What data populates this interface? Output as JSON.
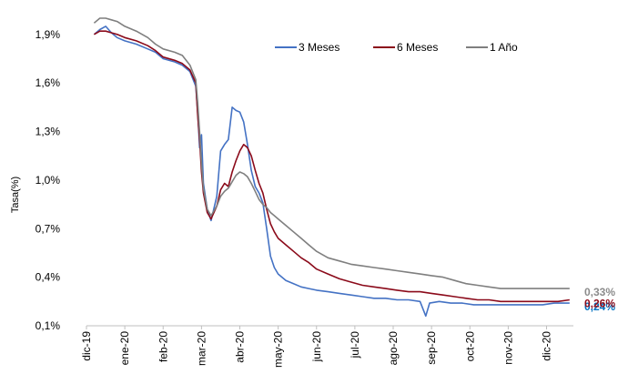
{
  "chart_data": {
    "type": "line",
    "title": "",
    "xlabel": "",
    "ylabel": "Tasa(%)",
    "ylim": [
      0.1,
      2.0
    ],
    "yticks": [
      "0,1%",
      "0,4%",
      "0,7%",
      "1,0%",
      "1,3%",
      "1,6%",
      "1,9%"
    ],
    "ytick_values": [
      0.1,
      0.4,
      0.7,
      1.0,
      1.3,
      1.6,
      1.9
    ],
    "xticks": [
      "dic-19",
      "ene-20",
      "feb-20",
      "mar-20",
      "abr-20",
      "may-20",
      "jun-20",
      "jul-20",
      "ago-20",
      "sep-20",
      "oct-20",
      "nov-20",
      "dic-20"
    ],
    "xlim": [
      0,
      12.7
    ],
    "legend_position": "top-right",
    "grid": false,
    "series": [
      {
        "name": "3 Meses",
        "color": "#4472C4",
        "end_label": "0,24%",
        "end_label_color": "#0070C0",
        "points": [
          [
            0.2,
            1.9
          ],
          [
            0.35,
            1.93
          ],
          [
            0.5,
            1.95
          ],
          [
            0.65,
            1.91
          ],
          [
            0.8,
            1.88
          ],
          [
            1.0,
            1.86
          ],
          [
            1.3,
            1.84
          ],
          [
            1.6,
            1.81
          ],
          [
            1.8,
            1.79
          ],
          [
            2.0,
            1.75
          ],
          [
            2.3,
            1.73
          ],
          [
            2.5,
            1.71
          ],
          [
            2.7,
            1.67
          ],
          [
            2.85,
            1.58
          ],
          [
            2.9,
            1.42
          ],
          [
            2.95,
            1.2
          ],
          [
            3.0,
            1.28
          ],
          [
            3.05,
            0.98
          ],
          [
            3.15,
            0.82
          ],
          [
            3.25,
            0.75
          ],
          [
            3.4,
            0.9
          ],
          [
            3.5,
            1.18
          ],
          [
            3.6,
            1.22
          ],
          [
            3.7,
            1.25
          ],
          [
            3.8,
            1.45
          ],
          [
            3.9,
            1.43
          ],
          [
            4.0,
            1.42
          ],
          [
            4.1,
            1.36
          ],
          [
            4.2,
            1.22
          ],
          [
            4.3,
            1.06
          ],
          [
            4.4,
            0.96
          ],
          [
            4.5,
            0.92
          ],
          [
            4.6,
            0.86
          ],
          [
            4.7,
            0.7
          ],
          [
            4.8,
            0.53
          ],
          [
            4.9,
            0.46
          ],
          [
            5.0,
            0.42
          ],
          [
            5.2,
            0.38
          ],
          [
            5.4,
            0.36
          ],
          [
            5.6,
            0.34
          ],
          [
            5.8,
            0.33
          ],
          [
            6.0,
            0.32
          ],
          [
            6.3,
            0.31
          ],
          [
            6.6,
            0.3
          ],
          [
            6.9,
            0.29
          ],
          [
            7.2,
            0.28
          ],
          [
            7.5,
            0.27
          ],
          [
            7.8,
            0.27
          ],
          [
            8.1,
            0.26
          ],
          [
            8.4,
            0.26
          ],
          [
            8.7,
            0.25
          ],
          [
            8.85,
            0.16
          ],
          [
            8.95,
            0.24
          ],
          [
            9.2,
            0.25
          ],
          [
            9.5,
            0.24
          ],
          [
            9.8,
            0.24
          ],
          [
            10.1,
            0.23
          ],
          [
            10.4,
            0.23
          ],
          [
            10.7,
            0.23
          ],
          [
            11.0,
            0.23
          ],
          [
            11.3,
            0.23
          ],
          [
            11.6,
            0.23
          ],
          [
            11.9,
            0.23
          ],
          [
            12.2,
            0.24
          ],
          [
            12.5,
            0.24
          ],
          [
            12.6,
            0.24
          ]
        ]
      },
      {
        "name": "6 Meses",
        "color": "#8B0A1A",
        "end_label": "0,26%",
        "end_label_color": "#8B0A1A",
        "points": [
          [
            0.2,
            1.9
          ],
          [
            0.35,
            1.92
          ],
          [
            0.5,
            1.92
          ],
          [
            0.65,
            1.91
          ],
          [
            0.8,
            1.9
          ],
          [
            1.0,
            1.88
          ],
          [
            1.3,
            1.86
          ],
          [
            1.6,
            1.83
          ],
          [
            1.8,
            1.8
          ],
          [
            2.0,
            1.76
          ],
          [
            2.3,
            1.74
          ],
          [
            2.5,
            1.72
          ],
          [
            2.7,
            1.68
          ],
          [
            2.85,
            1.6
          ],
          [
            2.9,
            1.4
          ],
          [
            2.95,
            1.25
          ],
          [
            3.0,
            1.05
          ],
          [
            3.05,
            0.92
          ],
          [
            3.15,
            0.8
          ],
          [
            3.25,
            0.76
          ],
          [
            3.4,
            0.84
          ],
          [
            3.5,
            0.94
          ],
          [
            3.6,
            0.98
          ],
          [
            3.7,
            0.96
          ],
          [
            3.8,
            1.05
          ],
          [
            3.9,
            1.12
          ],
          [
            4.0,
            1.18
          ],
          [
            4.1,
            1.22
          ],
          [
            4.2,
            1.2
          ],
          [
            4.3,
            1.15
          ],
          [
            4.4,
            1.06
          ],
          [
            4.5,
            0.98
          ],
          [
            4.6,
            0.92
          ],
          [
            4.7,
            0.82
          ],
          [
            4.8,
            0.73
          ],
          [
            4.9,
            0.68
          ],
          [
            5.0,
            0.64
          ],
          [
            5.2,
            0.6
          ],
          [
            5.4,
            0.56
          ],
          [
            5.6,
            0.52
          ],
          [
            5.8,
            0.49
          ],
          [
            6.0,
            0.45
          ],
          [
            6.3,
            0.42
          ],
          [
            6.6,
            0.39
          ],
          [
            6.9,
            0.37
          ],
          [
            7.2,
            0.35
          ],
          [
            7.5,
            0.34
          ],
          [
            7.8,
            0.33
          ],
          [
            8.1,
            0.32
          ],
          [
            8.4,
            0.31
          ],
          [
            8.7,
            0.31
          ],
          [
            9.0,
            0.3
          ],
          [
            9.3,
            0.29
          ],
          [
            9.6,
            0.28
          ],
          [
            9.9,
            0.27
          ],
          [
            10.2,
            0.26
          ],
          [
            10.5,
            0.26
          ],
          [
            10.8,
            0.25
          ],
          [
            11.1,
            0.25
          ],
          [
            11.4,
            0.25
          ],
          [
            11.7,
            0.25
          ],
          [
            12.0,
            0.25
          ],
          [
            12.3,
            0.25
          ],
          [
            12.6,
            0.26
          ]
        ]
      },
      {
        "name": "1 Año",
        "color": "#7F7F7F",
        "end_label": "0,33%",
        "end_label_color": "#8C8C8C",
        "points": [
          [
            0.2,
            1.97
          ],
          [
            0.35,
            2.0
          ],
          [
            0.5,
            2.0
          ],
          [
            0.65,
            1.99
          ],
          [
            0.8,
            1.98
          ],
          [
            1.0,
            1.95
          ],
          [
            1.3,
            1.92
          ],
          [
            1.6,
            1.88
          ],
          [
            1.8,
            1.84
          ],
          [
            2.0,
            1.81
          ],
          [
            2.3,
            1.79
          ],
          [
            2.5,
            1.77
          ],
          [
            2.7,
            1.71
          ],
          [
            2.85,
            1.62
          ],
          [
            2.9,
            1.48
          ],
          [
            2.95,
            1.3
          ],
          [
            3.0,
            1.1
          ],
          [
            3.05,
            0.95
          ],
          [
            3.15,
            0.82
          ],
          [
            3.25,
            0.78
          ],
          [
            3.4,
            0.84
          ],
          [
            3.5,
            0.9
          ],
          [
            3.6,
            0.93
          ],
          [
            3.7,
            0.95
          ],
          [
            3.8,
            0.99
          ],
          [
            3.9,
            1.03
          ],
          [
            4.0,
            1.05
          ],
          [
            4.1,
            1.04
          ],
          [
            4.2,
            1.02
          ],
          [
            4.3,
            0.98
          ],
          [
            4.4,
            0.93
          ],
          [
            4.5,
            0.88
          ],
          [
            4.6,
            0.85
          ],
          [
            4.7,
            0.83
          ],
          [
            4.8,
            0.8
          ],
          [
            4.9,
            0.78
          ],
          [
            5.0,
            0.76
          ],
          [
            5.2,
            0.72
          ],
          [
            5.4,
            0.68
          ],
          [
            5.6,
            0.64
          ],
          [
            5.8,
            0.6
          ],
          [
            6.0,
            0.56
          ],
          [
            6.3,
            0.52
          ],
          [
            6.6,
            0.5
          ],
          [
            6.9,
            0.48
          ],
          [
            7.2,
            0.47
          ],
          [
            7.5,
            0.46
          ],
          [
            7.8,
            0.45
          ],
          [
            8.1,
            0.44
          ],
          [
            8.4,
            0.43
          ],
          [
            8.7,
            0.42
          ],
          [
            9.0,
            0.41
          ],
          [
            9.3,
            0.4
          ],
          [
            9.6,
            0.38
          ],
          [
            9.9,
            0.36
          ],
          [
            10.2,
            0.35
          ],
          [
            10.5,
            0.34
          ],
          [
            10.8,
            0.33
          ],
          [
            11.1,
            0.33
          ],
          [
            11.4,
            0.33
          ],
          [
            11.7,
            0.33
          ],
          [
            12.0,
            0.33
          ],
          [
            12.3,
            0.33
          ],
          [
            12.6,
            0.33
          ]
        ]
      }
    ]
  }
}
